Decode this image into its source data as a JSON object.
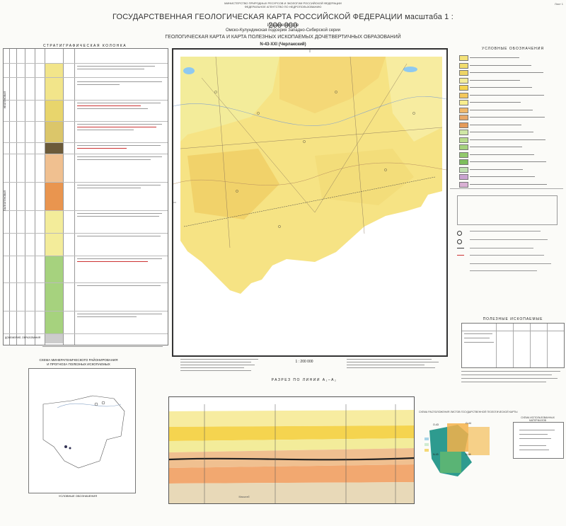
{
  "header": {
    "ministry_line1": "МИНИСТЕРСТВО ПРИРОДНЫХ РЕСУРСОВ И ЭКОЛОГИИ РОССИЙСКОЙ ФЕДЕРАЦИИ",
    "ministry_line2": "ФЕДЕРАЛЬНОЕ АГЕНТСТВО ПО НЕДРОПОЛЬЗОВАНИЮ",
    "sheet_number": "Лист 1",
    "title": "ГОСУДАРСТВЕННАЯ ГЕОЛОГИЧЕСКАЯ КАРТА РОССИЙСКОЙ ФЕДЕРАЦИИ масштаба 1 : 200 000",
    "edition": "Издание второе",
    "series": "Омско-Кулундинская подсерия Западно-Сибирской серии",
    "subtitle": "ГЕОЛОГИЧЕСКАЯ КАРТА И КАРТА ПОЛЕЗНЫХ ИСКОПАЕМЫХ ДОЧЕТВЕРТИЧНЫХ ОБРАЗОВАНИЙ",
    "sheet_code": "N-43-XXI (Черлакский)"
  },
  "strat_column": {
    "title": "СТРАТИГРАФИЧЕСКАЯ КОЛОНКА",
    "system_label_top": "НЕОГЕНОВАЯ",
    "system_label_bottom": "ПАЛЕОГЕНОВАЯ",
    "bottom_label": "ДОКЕМБРИЙ, ОБРАЗОВАНИЯ"
  },
  "legend": {
    "title": "УСЛОВНЫЕ ОБОЗНАЧЕНИЯ",
    "minerals_title": "ПОЛЕЗНЫЕ ИСКОПАЕМЫЕ",
    "colors": [
      "#f4e27a",
      "#f1dc6c",
      "#eed565",
      "#f3ec9a",
      "#f5d44f",
      "#f3c75c",
      "#f8ee8d",
      "#f0b86a",
      "#e8a868",
      "#e49a5a",
      "#cfe7a6",
      "#b9dc8e",
      "#a6d27e",
      "#92c96d",
      "#7dbf5c",
      "#bfe0b0",
      "#c9a3cf",
      "#d9b0d4"
    ]
  },
  "map": {
    "scale": "1 : 200 000",
    "city_label": "Черлак"
  },
  "scheme": {
    "title_line1": "СХЕМА МИНЕРАГЕНИЧЕСКОГО РАЙОНИРОВАНИЯ",
    "title_line2": "И ПРОГНОЗА ПОЛЕЗНЫХ ИСКОПАЕМЫХ",
    "legend_title": "УСЛОВНЫЕ ОБОЗНАЧЕНИЯ"
  },
  "section": {
    "title": "РАЗРЕЗ ПО ЛИНИИ А₁–А₂",
    "scale_note": "Масштаб"
  },
  "index": {
    "title": "СХЕМА РАСПОЛОЖЕНИЯ ЛИСТОВ ГОСУДАРСТВЕННОЙ ГЕОЛОГИЧЕСКОЙ КАРТЫ",
    "used_title": "СХЕМА ИСПОЛЬЗОВАННЫХ МАТЕРИАЛОВ",
    "sheet_labels": [
      "O-43",
      "O-44",
      "N-43",
      "N-44"
    ]
  }
}
